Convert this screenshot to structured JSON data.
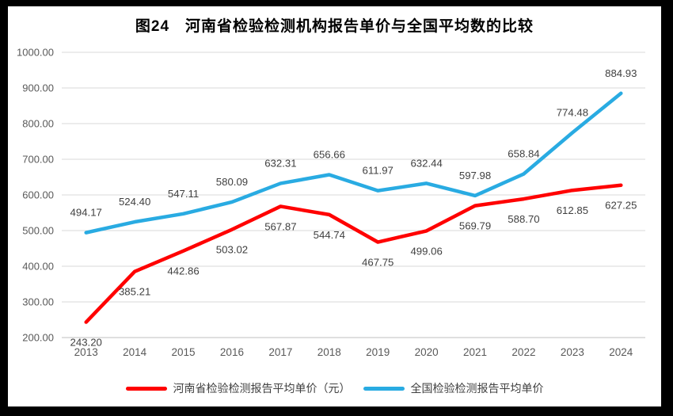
{
  "frame": {
    "border_color": "#000000",
    "background": "#ffffff"
  },
  "chart_data": {
    "type": "line",
    "title": "图24　河南省检验检测机构报告单价与全国平均数的比较",
    "categories": [
      "2013",
      "2014",
      "2015",
      "2016",
      "2017",
      "2018",
      "2019",
      "2020",
      "2021",
      "2022",
      "2023",
      "2024"
    ],
    "series": [
      {
        "name": "河南省检验检测报告平均单价（元）",
        "color": "#ff0000",
        "label_position": "below",
        "values": [
          243.2,
          385.21,
          442.86,
          503.02,
          567.87,
          544.74,
          467.75,
          499.06,
          569.79,
          588.7,
          612.85,
          627.25
        ]
      },
      {
        "name": "全国检验检测报告平均单价",
        "color": "#29abe2",
        "label_position": "above",
        "values": [
          494.17,
          524.4,
          547.11,
          580.09,
          632.31,
          656.66,
          611.97,
          632.44,
          597.98,
          658.84,
          774.48,
          884.93
        ]
      }
    ],
    "y_axis": {
      "min": 200,
      "max": 1000,
      "step": 100,
      "tick_labels": [
        "200.00",
        "300.00",
        "400.00",
        "500.00",
        "600.00",
        "700.00",
        "800.00",
        "900.00",
        "1000.00"
      ]
    },
    "grid": true,
    "legend_position": "bottom",
    "styles": {
      "grid_color": "#d9d9d9",
      "axis_line_color": "#bfbfbf",
      "axis_text_color": "#595959",
      "data_label_color": "#3f3f3f",
      "line_width": 4.5
    }
  }
}
